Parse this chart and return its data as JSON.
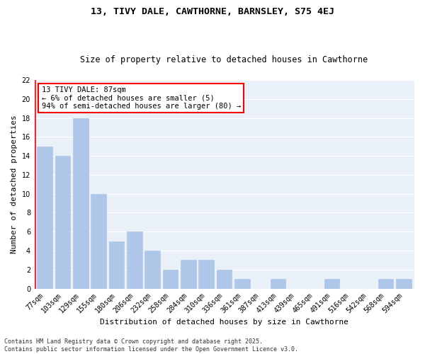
{
  "title1": "13, TIVY DALE, CAWTHORNE, BARNSLEY, S75 4EJ",
  "title2": "Size of property relative to detached houses in Cawthorne",
  "xlabel": "Distribution of detached houses by size in Cawthorne",
  "ylabel": "Number of detached properties",
  "categories": [
    "77sqm",
    "103sqm",
    "129sqm",
    "155sqm",
    "180sqm",
    "206sqm",
    "232sqm",
    "258sqm",
    "284sqm",
    "310sqm",
    "336sqm",
    "361sqm",
    "387sqm",
    "413sqm",
    "439sqm",
    "465sqm",
    "491sqm",
    "516sqm",
    "542sqm",
    "568sqm",
    "594sqm"
  ],
  "values": [
    15,
    14,
    18,
    10,
    5,
    6,
    4,
    2,
    3,
    3,
    2,
    1,
    0,
    1,
    0,
    0,
    1,
    0,
    0,
    1,
    1
  ],
  "bar_color": "#aec6e8",
  "bar_edge_color": "#aec6e8",
  "annotation_text": "13 TIVY DALE: 87sqm\n← 6% of detached houses are smaller (5)\n94% of semi-detached houses are larger (80) →",
  "annotation_box_color": "white",
  "annotation_border_color": "red",
  "red_line_x": -0.5,
  "ylim": [
    0,
    22
  ],
  "yticks": [
    0,
    2,
    4,
    6,
    8,
    10,
    12,
    14,
    16,
    18,
    20,
    22
  ],
  "background_color": "#eaf0f8",
  "grid_color": "white",
  "footer_text": "Contains HM Land Registry data © Crown copyright and database right 2025.\nContains public sector information licensed under the Open Government Licence v3.0.",
  "title1_fontsize": 9.5,
  "title2_fontsize": 8.5,
  "xlabel_fontsize": 8,
  "ylabel_fontsize": 8,
  "tick_fontsize": 7,
  "annotation_fontsize": 7.5,
  "footer_fontsize": 6
}
